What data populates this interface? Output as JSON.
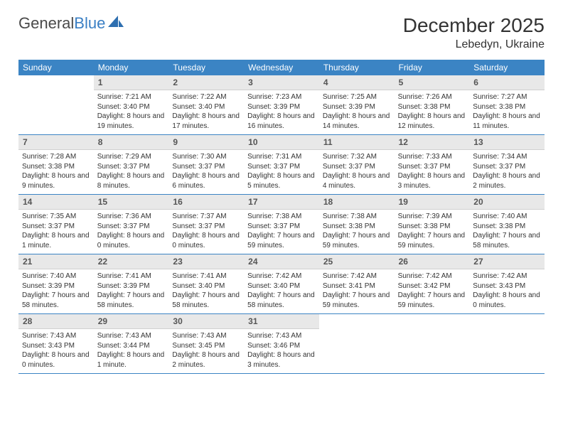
{
  "brand": {
    "part1": "General",
    "part2": "Blue"
  },
  "title": "December 2025",
  "location": "Lebedyn, Ukraine",
  "colors": {
    "header_bg": "#3b84c4",
    "daynum_bg": "#e8e8e8",
    "border": "#3b84c4",
    "text": "#333333"
  },
  "day_names": [
    "Sunday",
    "Monday",
    "Tuesday",
    "Wednesday",
    "Thursday",
    "Friday",
    "Saturday"
  ],
  "weeks": [
    [
      {
        "n": "",
        "sr": "",
        "ss": "",
        "dl": ""
      },
      {
        "n": "1",
        "sr": "Sunrise: 7:21 AM",
        "ss": "Sunset: 3:40 PM",
        "dl": "Daylight: 8 hours and 19 minutes."
      },
      {
        "n": "2",
        "sr": "Sunrise: 7:22 AM",
        "ss": "Sunset: 3:40 PM",
        "dl": "Daylight: 8 hours and 17 minutes."
      },
      {
        "n": "3",
        "sr": "Sunrise: 7:23 AM",
        "ss": "Sunset: 3:39 PM",
        "dl": "Daylight: 8 hours and 16 minutes."
      },
      {
        "n": "4",
        "sr": "Sunrise: 7:25 AM",
        "ss": "Sunset: 3:39 PM",
        "dl": "Daylight: 8 hours and 14 minutes."
      },
      {
        "n": "5",
        "sr": "Sunrise: 7:26 AM",
        "ss": "Sunset: 3:38 PM",
        "dl": "Daylight: 8 hours and 12 minutes."
      },
      {
        "n": "6",
        "sr": "Sunrise: 7:27 AM",
        "ss": "Sunset: 3:38 PM",
        "dl": "Daylight: 8 hours and 11 minutes."
      }
    ],
    [
      {
        "n": "7",
        "sr": "Sunrise: 7:28 AM",
        "ss": "Sunset: 3:38 PM",
        "dl": "Daylight: 8 hours and 9 minutes."
      },
      {
        "n": "8",
        "sr": "Sunrise: 7:29 AM",
        "ss": "Sunset: 3:37 PM",
        "dl": "Daylight: 8 hours and 8 minutes."
      },
      {
        "n": "9",
        "sr": "Sunrise: 7:30 AM",
        "ss": "Sunset: 3:37 PM",
        "dl": "Daylight: 8 hours and 6 minutes."
      },
      {
        "n": "10",
        "sr": "Sunrise: 7:31 AM",
        "ss": "Sunset: 3:37 PM",
        "dl": "Daylight: 8 hours and 5 minutes."
      },
      {
        "n": "11",
        "sr": "Sunrise: 7:32 AM",
        "ss": "Sunset: 3:37 PM",
        "dl": "Daylight: 8 hours and 4 minutes."
      },
      {
        "n": "12",
        "sr": "Sunrise: 7:33 AM",
        "ss": "Sunset: 3:37 PM",
        "dl": "Daylight: 8 hours and 3 minutes."
      },
      {
        "n": "13",
        "sr": "Sunrise: 7:34 AM",
        "ss": "Sunset: 3:37 PM",
        "dl": "Daylight: 8 hours and 2 minutes."
      }
    ],
    [
      {
        "n": "14",
        "sr": "Sunrise: 7:35 AM",
        "ss": "Sunset: 3:37 PM",
        "dl": "Daylight: 8 hours and 1 minute."
      },
      {
        "n": "15",
        "sr": "Sunrise: 7:36 AM",
        "ss": "Sunset: 3:37 PM",
        "dl": "Daylight: 8 hours and 0 minutes."
      },
      {
        "n": "16",
        "sr": "Sunrise: 7:37 AM",
        "ss": "Sunset: 3:37 PM",
        "dl": "Daylight: 8 hours and 0 minutes."
      },
      {
        "n": "17",
        "sr": "Sunrise: 7:38 AM",
        "ss": "Sunset: 3:37 PM",
        "dl": "Daylight: 7 hours and 59 minutes."
      },
      {
        "n": "18",
        "sr": "Sunrise: 7:38 AM",
        "ss": "Sunset: 3:38 PM",
        "dl": "Daylight: 7 hours and 59 minutes."
      },
      {
        "n": "19",
        "sr": "Sunrise: 7:39 AM",
        "ss": "Sunset: 3:38 PM",
        "dl": "Daylight: 7 hours and 59 minutes."
      },
      {
        "n": "20",
        "sr": "Sunrise: 7:40 AM",
        "ss": "Sunset: 3:38 PM",
        "dl": "Daylight: 7 hours and 58 minutes."
      }
    ],
    [
      {
        "n": "21",
        "sr": "Sunrise: 7:40 AM",
        "ss": "Sunset: 3:39 PM",
        "dl": "Daylight: 7 hours and 58 minutes."
      },
      {
        "n": "22",
        "sr": "Sunrise: 7:41 AM",
        "ss": "Sunset: 3:39 PM",
        "dl": "Daylight: 7 hours and 58 minutes."
      },
      {
        "n": "23",
        "sr": "Sunrise: 7:41 AM",
        "ss": "Sunset: 3:40 PM",
        "dl": "Daylight: 7 hours and 58 minutes."
      },
      {
        "n": "24",
        "sr": "Sunrise: 7:42 AM",
        "ss": "Sunset: 3:40 PM",
        "dl": "Daylight: 7 hours and 58 minutes."
      },
      {
        "n": "25",
        "sr": "Sunrise: 7:42 AM",
        "ss": "Sunset: 3:41 PM",
        "dl": "Daylight: 7 hours and 59 minutes."
      },
      {
        "n": "26",
        "sr": "Sunrise: 7:42 AM",
        "ss": "Sunset: 3:42 PM",
        "dl": "Daylight: 7 hours and 59 minutes."
      },
      {
        "n": "27",
        "sr": "Sunrise: 7:42 AM",
        "ss": "Sunset: 3:43 PM",
        "dl": "Daylight: 8 hours and 0 minutes."
      }
    ],
    [
      {
        "n": "28",
        "sr": "Sunrise: 7:43 AM",
        "ss": "Sunset: 3:43 PM",
        "dl": "Daylight: 8 hours and 0 minutes."
      },
      {
        "n": "29",
        "sr": "Sunrise: 7:43 AM",
        "ss": "Sunset: 3:44 PM",
        "dl": "Daylight: 8 hours and 1 minute."
      },
      {
        "n": "30",
        "sr": "Sunrise: 7:43 AM",
        "ss": "Sunset: 3:45 PM",
        "dl": "Daylight: 8 hours and 2 minutes."
      },
      {
        "n": "31",
        "sr": "Sunrise: 7:43 AM",
        "ss": "Sunset: 3:46 PM",
        "dl": "Daylight: 8 hours and 3 minutes."
      },
      {
        "n": "",
        "sr": "",
        "ss": "",
        "dl": ""
      },
      {
        "n": "",
        "sr": "",
        "ss": "",
        "dl": ""
      },
      {
        "n": "",
        "sr": "",
        "ss": "",
        "dl": ""
      }
    ]
  ]
}
